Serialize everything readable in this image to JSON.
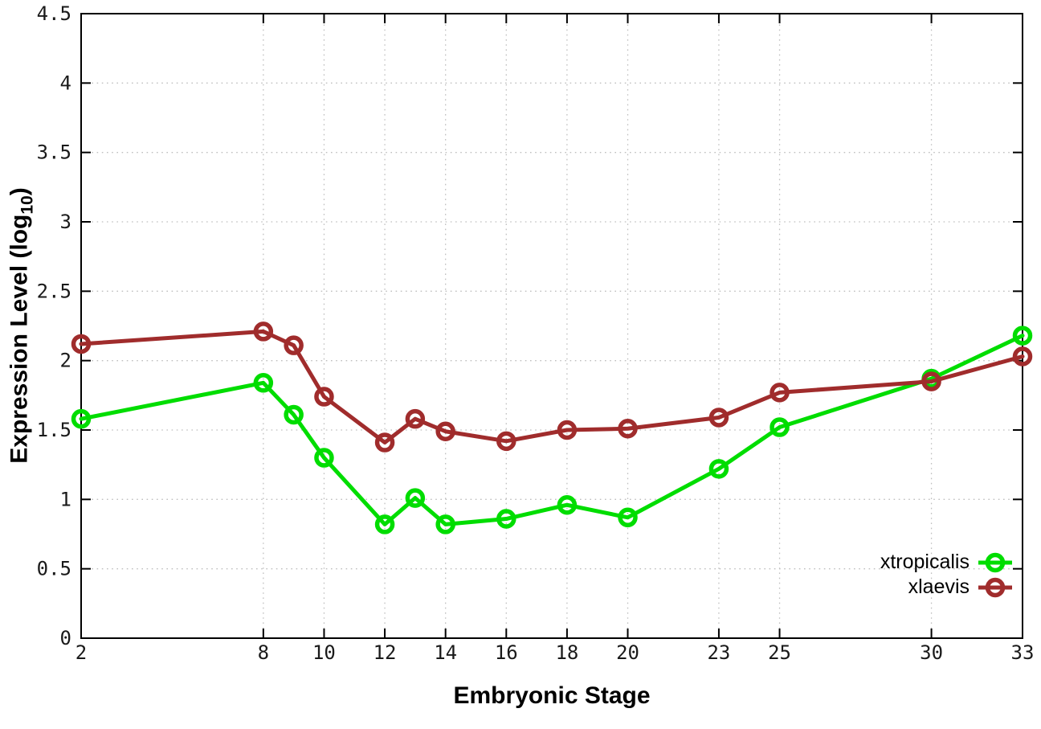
{
  "chart_data": {
    "type": "line",
    "x": [
      2,
      8,
      9,
      10,
      12,
      13,
      14,
      16,
      18,
      20,
      23,
      25,
      30,
      33
    ],
    "series": [
      {
        "name": "xtropicalis",
        "color": "#00dd00",
        "values": [
          1.58,
          1.84,
          1.61,
          1.3,
          0.82,
          1.01,
          0.82,
          0.86,
          0.96,
          0.87,
          1.22,
          1.52,
          1.87,
          2.18
        ]
      },
      {
        "name": "xlaevis",
        "color": "#a02c2c",
        "values": [
          2.12,
          2.21,
          2.11,
          1.74,
          1.41,
          1.58,
          1.49,
          1.42,
          1.5,
          1.51,
          1.59,
          1.77,
          1.85,
          2.03
        ]
      }
    ],
    "title": "",
    "xlabel": "Embryonic Stage",
    "ylabel_main": "Expression Level (log",
    "ylabel_sub": "10",
    "ylabel_close": ")",
    "xlim": [
      2,
      33
    ],
    "ylim": [
      0,
      4.5
    ],
    "xticks": [
      2,
      8,
      10,
      12,
      14,
      16,
      18,
      20,
      23,
      25,
      30,
      33
    ],
    "xtick_labels": [
      "2",
      "8",
      "10",
      "12",
      "14",
      "16",
      "18",
      "20",
      "23",
      "25",
      "30",
      "33"
    ],
    "yticks": [
      0,
      0.5,
      1,
      1.5,
      2,
      2.5,
      3,
      3.5,
      4,
      4.5
    ],
    "ytick_labels": [
      "0",
      "0.5",
      "1",
      "1.5",
      "2",
      "2.5",
      "3",
      "3.5",
      "4",
      "4.5"
    ],
    "grid": true,
    "legend_position": "bottom-right",
    "colors": {
      "background": "#ffffff",
      "border": "#000000",
      "grid": "#bfbfbf",
      "tick_text": "#1a1a1a"
    }
  }
}
